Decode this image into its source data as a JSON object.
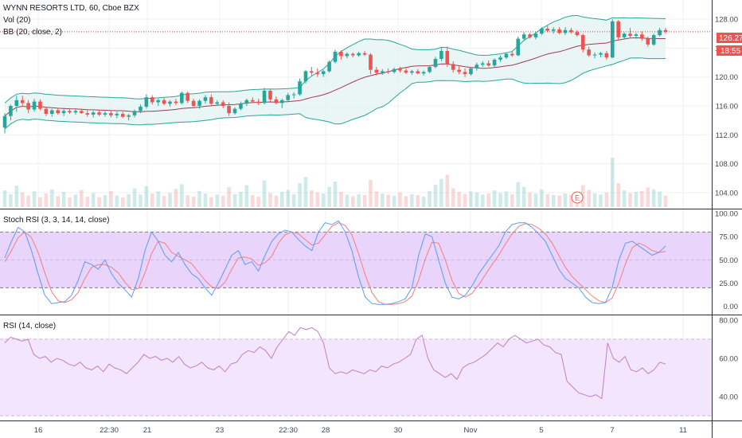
{
  "colors": {
    "up": "#26a69a",
    "down": "#ef5350",
    "bb_band": "#26a69a",
    "bb_fill": "#e0f2f1",
    "bb_basis": "#a33a52",
    "price_line": "#f23645",
    "stoch_k": "#5b9cf6",
    "stoch_d": "#f77c80",
    "stoch_fill": "#e9d4fb",
    "rsi_line": "#c27ec8",
    "rsi_fill": "#f3e5fb",
    "grid": "#eef0f3",
    "axis_text": "#434651",
    "countdown_bg": "#ef5350"
  },
  "header": {
    "title": "WYNN RESORTS LTD, 60, Cboe BZX",
    "vol_label": "Vol (20)",
    "bb_label": "BB (20, close, 2)",
    "stoch_label": "Stoch RSI (3, 3, 14, 14, close)",
    "rsi_label": "RSI (14, close)"
  },
  "price_axis": {
    "ticks": [
      "128.00",
      "124.00",
      "120.00",
      "116.00",
      "112.00",
      "108.00",
      "104.00"
    ],
    "last_price": "126.27",
    "countdown": "18:55"
  },
  "stoch_axis": {
    "ticks": [
      "100.00",
      "75.00",
      "50.00",
      "25.00",
      "0.00"
    ]
  },
  "rsi_axis": {
    "ticks": [
      "80.00",
      "60.00",
      "40.00"
    ]
  },
  "time_axis": {
    "labels": [
      "16",
      "22:30",
      "21",
      "23",
      "22:30",
      "28",
      "30",
      "Nov",
      "5",
      "7",
      "11"
    ]
  },
  "events": [
    {
      "label": "E"
    }
  ],
  "chart_data": [
    {
      "type": "candlestick",
      "title": "WYNN RESORTS LTD, 60, Cboe BZX",
      "ylim": [
        102,
        130
      ],
      "y_ticks": [
        104,
        108,
        112,
        116,
        120,
        124,
        128
      ],
      "last_price": 126.27,
      "candles": [
        [
          113.0,
          115.0,
          112.2,
          114.6
        ],
        [
          114.6,
          116.2,
          114.0,
          116.0
        ],
        [
          116.0,
          117.4,
          115.2,
          116.8
        ],
        [
          116.8,
          117.4,
          115.9,
          116.4
        ],
        [
          116.4,
          116.8,
          115.0,
          115.5
        ],
        [
          115.5,
          117.0,
          115.2,
          116.6
        ],
        [
          116.6,
          116.9,
          115.4,
          115.6
        ],
        [
          115.6,
          115.9,
          114.6,
          114.9
        ],
        [
          114.9,
          115.6,
          114.5,
          115.4
        ],
        [
          115.4,
          115.7,
          114.8,
          115.0
        ],
        [
          115.0,
          115.6,
          114.6,
          115.3
        ],
        [
          115.3,
          115.7,
          114.9,
          115.1
        ],
        [
          115.1,
          115.5,
          114.8,
          115.3
        ],
        [
          115.3,
          115.6,
          114.9,
          115.0
        ],
        [
          115.0,
          115.4,
          114.5,
          114.8
        ],
        [
          114.8,
          115.3,
          114.4,
          115.1
        ],
        [
          115.1,
          115.5,
          114.6,
          114.8
        ],
        [
          114.8,
          115.3,
          114.5,
          115.0
        ],
        [
          115.0,
          115.4,
          114.4,
          114.7
        ],
        [
          114.7,
          115.2,
          114.3,
          114.9
        ],
        [
          114.9,
          115.2,
          114.3,
          114.5
        ],
        [
          114.5,
          114.9,
          114.0,
          114.7
        ],
        [
          114.7,
          115.5,
          114.4,
          115.3
        ],
        [
          115.3,
          116.2,
          115.0,
          115.9
        ],
        [
          115.9,
          117.6,
          115.6,
          117.2
        ],
        [
          117.2,
          117.5,
          116.2,
          116.5
        ],
        [
          116.5,
          117.0,
          116.0,
          116.8
        ],
        [
          116.8,
          117.1,
          116.1,
          116.3
        ],
        [
          116.3,
          116.8,
          115.9,
          116.6
        ],
        [
          116.6,
          117.0,
          116.1,
          116.4
        ],
        [
          116.4,
          118.0,
          116.2,
          117.8
        ],
        [
          117.8,
          118.0,
          116.4,
          116.7
        ],
        [
          116.7,
          117.0,
          115.7,
          116.0
        ],
        [
          116.0,
          116.9,
          115.6,
          116.7
        ],
        [
          116.7,
          117.5,
          116.3,
          117.2
        ],
        [
          117.2,
          117.6,
          116.0,
          116.3
        ],
        [
          116.3,
          116.8,
          116.0,
          116.5
        ],
        [
          116.5,
          116.8,
          115.7,
          116.0
        ],
        [
          116.0,
          116.5,
          114.6,
          115.0
        ],
        [
          115.0,
          115.8,
          114.8,
          115.6
        ],
        [
          115.6,
          116.6,
          115.4,
          116.3
        ],
        [
          116.3,
          117.0,
          116.0,
          116.8
        ],
        [
          116.8,
          117.2,
          116.4,
          116.6
        ],
        [
          116.6,
          117.0,
          116.1,
          116.4
        ],
        [
          116.4,
          118.5,
          116.2,
          118.1
        ],
        [
          118.1,
          118.3,
          116.6,
          116.9
        ],
        [
          116.9,
          117.3,
          116.2,
          116.4
        ],
        [
          116.4,
          117.0,
          115.7,
          116.8
        ],
        [
          116.8,
          117.8,
          116.5,
          117.5
        ],
        [
          117.5,
          117.9,
          117.0,
          117.6
        ],
        [
          117.6,
          119.8,
          117.4,
          119.4
        ],
        [
          119.4,
          121.0,
          119.1,
          120.8
        ],
        [
          120.8,
          121.4,
          120.2,
          120.6
        ],
        [
          120.6,
          121.2,
          120.0,
          120.4
        ],
        [
          120.4,
          121.0,
          120.0,
          120.8
        ],
        [
          120.8,
          122.3,
          120.6,
          122.1
        ],
        [
          122.1,
          123.8,
          121.9,
          123.5
        ],
        [
          123.5,
          123.7,
          122.4,
          122.9
        ],
        [
          122.9,
          123.4,
          122.6,
          123.2
        ],
        [
          123.2,
          123.4,
          122.7,
          123.0
        ],
        [
          123.0,
          123.5,
          122.8,
          123.3
        ],
        [
          123.3,
          123.6,
          122.9,
          123.1
        ],
        [
          123.1,
          123.3,
          120.4,
          121.0
        ],
        [
          121.0,
          121.4,
          120.2,
          120.6
        ],
        [
          120.6,
          121.1,
          120.3,
          120.8
        ],
        [
          120.8,
          121.2,
          120.4,
          120.7
        ],
        [
          120.7,
          121.3,
          120.5,
          121.1
        ],
        [
          121.1,
          121.4,
          120.6,
          120.9
        ],
        [
          120.9,
          121.2,
          120.4,
          120.6
        ],
        [
          120.6,
          121.0,
          120.3,
          120.8
        ],
        [
          120.8,
          121.1,
          120.4,
          120.5
        ],
        [
          120.5,
          120.9,
          120.2,
          120.7
        ],
        [
          120.7,
          121.6,
          120.5,
          121.4
        ],
        [
          121.4,
          122.8,
          121.2,
          122.5
        ],
        [
          122.5,
          124.0,
          122.2,
          123.6
        ],
        [
          123.6,
          124.2,
          121.4,
          121.8
        ],
        [
          121.8,
          122.2,
          120.6,
          121.0
        ],
        [
          121.0,
          121.5,
          120.4,
          120.7
        ],
        [
          120.7,
          121.2,
          120.0,
          120.4
        ],
        [
          120.4,
          121.4,
          120.2,
          121.2
        ],
        [
          121.2,
          122.0,
          120.9,
          121.7
        ],
        [
          121.7,
          122.2,
          121.4,
          121.9
        ],
        [
          121.9,
          122.3,
          121.4,
          121.6
        ],
        [
          121.6,
          122.6,
          121.4,
          122.4
        ],
        [
          122.4,
          123.0,
          122.1,
          122.7
        ],
        [
          122.7,
          123.4,
          122.5,
          123.2
        ],
        [
          123.2,
          123.6,
          122.8,
          123.0
        ],
        [
          123.0,
          125.6,
          122.9,
          125.3
        ],
        [
          125.3,
          126.2,
          125.0,
          125.9
        ],
        [
          125.9,
          126.1,
          125.3,
          125.5
        ],
        [
          125.5,
          126.2,
          125.2,
          126.0
        ],
        [
          126.0,
          126.9,
          125.8,
          126.7
        ],
        [
          126.7,
          127.1,
          126.2,
          126.4
        ],
        [
          126.4,
          126.9,
          126.0,
          126.6
        ],
        [
          126.6,
          126.9,
          125.9,
          126.1
        ],
        [
          126.1,
          126.9,
          125.8,
          126.5
        ],
        [
          126.5,
          126.8,
          126.0,
          126.2
        ],
        [
          126.2,
          126.5,
          125.6,
          125.8
        ],
        [
          125.8,
          126.0,
          123.4,
          123.8
        ],
        [
          123.8,
          124.2,
          122.8,
          123.0
        ],
        [
          123.0,
          123.4,
          122.6,
          123.1
        ],
        [
          123.1,
          123.5,
          122.7,
          123.3
        ],
        [
          123.3,
          123.6,
          122.4,
          122.7
        ],
        [
          122.7,
          128.0,
          122.6,
          127.7
        ],
        [
          127.7,
          127.9,
          125.1,
          125.5
        ],
        [
          125.5,
          126.2,
          125.2,
          126.0
        ],
        [
          126.0,
          126.8,
          125.5,
          125.7
        ],
        [
          125.7,
          126.1,
          125.3,
          125.9
        ],
        [
          125.9,
          126.3,
          125.0,
          125.3
        ],
        [
          125.3,
          125.6,
          124.2,
          124.5
        ],
        [
          124.5,
          126.0,
          124.3,
          125.8
        ],
        [
          125.8,
          126.8,
          125.6,
          126.5
        ],
        [
          126.5,
          126.8,
          126.0,
          126.27
        ]
      ],
      "volume": [
        3.2,
        2.5,
        4.1,
        2.8,
        2.2,
        3.0,
        1.9,
        2.6,
        3.4,
        2.1,
        2.9,
        1.8,
        2.4,
        3.3,
        2.0,
        2.7,
        1.9,
        2.3,
        3.1,
        2.2,
        1.8,
        2.5,
        3.6,
        2.4,
        4.0,
        2.6,
        3.0,
        2.1,
        2.7,
        3.5,
        4.4,
        2.3,
        2.0,
        3.1,
        2.6,
        1.9,
        2.4,
        2.2,
        3.8,
        2.5,
        2.9,
        4.2,
        2.3,
        2.0,
        5.1,
        2.7,
        2.2,
        2.9,
        3.3,
        2.5,
        4.6,
        5.8,
        3.2,
        2.8,
        2.6,
        3.9,
        4.9,
        2.9,
        2.4,
        2.1,
        2.5,
        2.3,
        5.2,
        3.0,
        2.6,
        2.4,
        2.2,
        2.8,
        2.1,
        2.5,
        2.3,
        2.0,
        3.1,
        4.3,
        5.4,
        6.2,
        3.6,
        2.9,
        2.5,
        3.0,
        2.8,
        2.4,
        2.6,
        3.2,
        2.7,
        3.0,
        2.5,
        4.8,
        3.9,
        2.8,
        2.6,
        3.4,
        2.5,
        2.3,
        2.2,
        2.6,
        2.4,
        2.1,
        4.2,
        3.3,
        2.6,
        2.4,
        2.8,
        9.5,
        4.6,
        3.2,
        2.7,
        2.9,
        3.1,
        3.8,
        3.4,
        3.0,
        2.2
      ]
    },
    {
      "type": "line",
      "title": "Stoch RSI (3, 3, 14, 14, close)",
      "ylim": [
        -8,
        100
      ],
      "y_ticks": [
        0,
        25,
        50,
        75,
        100
      ],
      "band": [
        20,
        80
      ],
      "k": [
        52,
        70,
        85,
        80,
        60,
        35,
        12,
        3,
        4,
        5,
        12,
        28,
        48,
        45,
        40,
        50,
        35,
        25,
        18,
        10,
        30,
        60,
        80,
        70,
        55,
        48,
        58,
        45,
        35,
        30,
        20,
        12,
        25,
        40,
        55,
        60,
        45,
        48,
        38,
        55,
        70,
        78,
        82,
        80,
        72,
        65,
        60,
        80,
        90,
        88,
        92,
        80,
        60,
        32,
        10,
        3,
        2,
        2,
        3,
        5,
        8,
        20,
        55,
        78,
        75,
        50,
        25,
        10,
        8,
        12,
        22,
        35,
        45,
        55,
        65,
        80,
        88,
        90,
        90,
        85,
        78,
        70,
        55,
        40,
        30,
        25,
        20,
        10,
        4,
        3,
        4,
        20,
        50,
        68,
        70,
        65,
        60,
        55,
        58,
        65
      ],
      "d": [
        48,
        60,
        74,
        80,
        74,
        58,
        36,
        16,
        6,
        4,
        7,
        15,
        30,
        42,
        45,
        45,
        42,
        36,
        26,
        18,
        19,
        36,
        57,
        70,
        68,
        58,
        54,
        50,
        46,
        37,
        28,
        21,
        19,
        26,
        40,
        52,
        53,
        51,
        44,
        47,
        54,
        68,
        77,
        80,
        78,
        72,
        66,
        68,
        77,
        86,
        90,
        87,
        77,
        57,
        34,
        15,
        5,
        2,
        2,
        3,
        5,
        11,
        28,
        51,
        69,
        68,
        50,
        28,
        14,
        10,
        14,
        23,
        34,
        45,
        55,
        67,
        78,
        86,
        89,
        88,
        84,
        78,
        68,
        55,
        42,
        32,
        25,
        18,
        11,
        6,
        4,
        9,
        25,
        46,
        63,
        68,
        65,
        60,
        58,
        59
      ]
    },
    {
      "type": "line",
      "title": "RSI (14, close)",
      "ylim": [
        28,
        82
      ],
      "y_ticks": [
        40,
        60,
        80
      ],
      "band": [
        30,
        70
      ],
      "values": [
        68,
        71,
        70,
        69,
        70,
        62,
        60,
        61,
        58,
        60,
        59,
        57,
        56,
        58,
        55,
        54,
        56,
        53,
        57,
        55,
        54,
        52,
        55,
        58,
        62,
        60,
        61,
        59,
        60,
        58,
        61,
        57,
        55,
        56,
        58,
        55,
        54,
        56,
        53,
        57,
        58,
        62,
        64,
        63,
        66,
        64,
        60,
        66,
        70,
        74,
        72,
        76,
        75,
        76,
        74,
        68,
        55,
        52,
        53,
        52,
        54,
        53,
        52,
        54,
        53,
        56,
        55,
        57,
        58,
        60,
        62,
        70,
        72,
        60,
        54,
        52,
        50,
        52,
        49,
        55,
        57,
        58,
        60,
        62,
        65,
        68,
        66,
        70,
        72,
        70,
        68,
        69,
        70,
        67,
        66,
        63,
        62,
        48,
        45,
        42,
        41,
        40,
        41,
        39,
        68,
        60,
        58,
        61,
        54,
        53,
        55,
        52,
        54,
        58,
        57
      ]
    }
  ]
}
